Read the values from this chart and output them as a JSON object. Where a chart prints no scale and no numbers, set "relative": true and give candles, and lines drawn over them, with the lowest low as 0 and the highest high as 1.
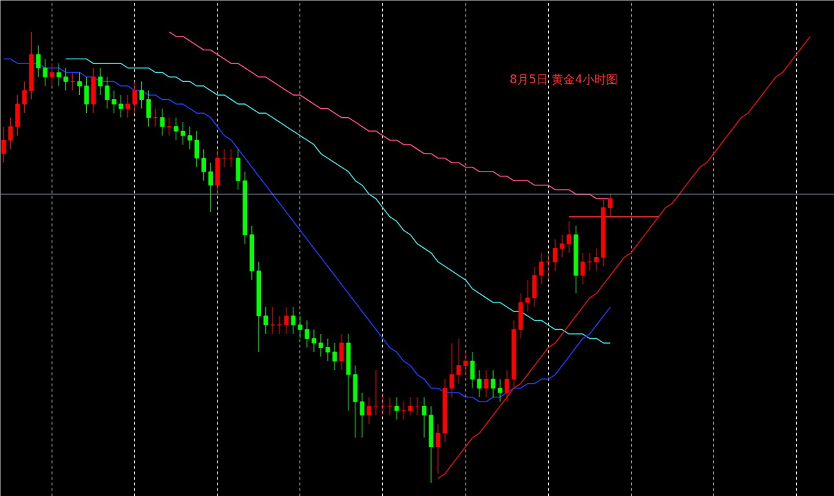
{
  "chart_data": {
    "type": "candlestick",
    "relative": true,
    "title": "8月5日 黄金4小时图",
    "categories": [
      null,
      null,
      null,
      null,
      null,
      null,
      null,
      null,
      null,
      null,
      null,
      null,
      null,
      null,
      null,
      null,
      null,
      null,
      null,
      null,
      null,
      null,
      null,
      null,
      null,
      null,
      null,
      null,
      null,
      null,
      null,
      null,
      null,
      null,
      null,
      null,
      null,
      null,
      null,
      null,
      null,
      null,
      null,
      null,
      null,
      null,
      null,
      null,
      null,
      null,
      null,
      null,
      null,
      null,
      null,
      null,
      null,
      null,
      null,
      null,
      null,
      null,
      null,
      null,
      null,
      null,
      null,
      null,
      null,
      null,
      null,
      null,
      null,
      null,
      null,
      null,
      null,
      null,
      null,
      null,
      null,
      null,
      null,
      null,
      null,
      null,
      null,
      null,
      null,
      null,
      null,
      null,
      null,
      null,
      null,
      null,
      null,
      null,
      null,
      null,
      null,
      null,
      null,
      null,
      null,
      null,
      null,
      null,
      null,
      null,
      null,
      null,
      null,
      null,
      null,
      null,
      null,
      null
    ],
    "ohlc": [
      [
        0.73,
        0.79,
        0.71,
        0.76
      ],
      [
        0.76,
        0.81,
        0.74,
        0.79
      ],
      [
        0.79,
        0.86,
        0.77,
        0.84
      ],
      [
        0.84,
        0.89,
        0.82,
        0.87
      ],
      [
        0.87,
        1.0,
        0.85,
        0.95
      ],
      [
        0.95,
        0.97,
        0.9,
        0.92
      ],
      [
        0.92,
        0.94,
        0.88,
        0.9
      ],
      [
        0.9,
        0.93,
        0.88,
        0.91
      ],
      [
        0.91,
        0.93,
        0.88,
        0.9
      ],
      [
        0.9,
        0.92,
        0.87,
        0.89
      ],
      [
        0.89,
        0.91,
        0.87,
        0.89
      ],
      [
        0.89,
        0.91,
        0.86,
        0.88
      ],
      [
        0.88,
        0.9,
        0.82,
        0.84
      ],
      [
        0.84,
        0.92,
        0.82,
        0.9
      ],
      [
        0.9,
        0.92,
        0.86,
        0.88
      ],
      [
        0.88,
        0.9,
        0.83,
        0.85
      ],
      [
        0.85,
        0.87,
        0.82,
        0.84
      ],
      [
        0.84,
        0.86,
        0.81,
        0.83
      ],
      [
        0.83,
        0.86,
        0.81,
        0.84
      ],
      [
        0.84,
        0.89,
        0.82,
        0.87
      ],
      [
        0.87,
        0.89,
        0.83,
        0.85
      ],
      [
        0.85,
        0.87,
        0.79,
        0.81
      ],
      [
        0.81,
        0.83,
        0.79,
        0.81
      ],
      [
        0.81,
        0.83,
        0.77,
        0.79
      ],
      [
        0.79,
        0.81,
        0.77,
        0.79
      ],
      [
        0.79,
        0.81,
        0.76,
        0.78
      ],
      [
        0.78,
        0.8,
        0.75,
        0.77
      ],
      [
        0.77,
        0.79,
        0.74,
        0.76
      ],
      [
        0.76,
        0.78,
        0.7,
        0.72
      ],
      [
        0.72,
        0.74,
        0.67,
        0.69
      ],
      [
        0.69,
        0.71,
        0.6,
        0.66
      ],
      [
        0.66,
        0.74,
        0.64,
        0.72
      ],
      [
        0.72,
        0.74,
        0.7,
        0.72
      ],
      [
        0.72,
        0.74,
        0.7,
        0.72
      ],
      [
        0.72,
        0.74,
        0.65,
        0.67
      ],
      [
        0.67,
        0.69,
        0.53,
        0.55
      ],
      [
        0.55,
        0.57,
        0.45,
        0.47
      ],
      [
        0.47,
        0.49,
        0.29,
        0.37
      ],
      [
        0.37,
        0.39,
        0.33,
        0.35
      ],
      [
        0.35,
        0.39,
        0.33,
        0.35
      ],
      [
        0.35,
        0.37,
        0.33,
        0.35
      ],
      [
        0.35,
        0.39,
        0.33,
        0.37
      ],
      [
        0.37,
        0.39,
        0.33,
        0.35
      ],
      [
        0.35,
        0.37,
        0.32,
        0.34
      ],
      [
        0.34,
        0.36,
        0.3,
        0.32
      ],
      [
        0.32,
        0.34,
        0.29,
        0.31
      ],
      [
        0.31,
        0.33,
        0.28,
        0.3
      ],
      [
        0.3,
        0.32,
        0.27,
        0.29
      ],
      [
        0.29,
        0.31,
        0.25,
        0.27
      ],
      [
        0.27,
        0.33,
        0.25,
        0.31
      ],
      [
        0.31,
        0.33,
        0.16,
        0.24
      ],
      [
        0.24,
        0.26,
        0.1,
        0.18
      ],
      [
        0.18,
        0.2,
        0.1,
        0.15
      ],
      [
        0.15,
        0.19,
        0.13,
        0.17
      ],
      [
        0.17,
        0.25,
        0.15,
        0.17
      ],
      [
        0.17,
        0.2,
        0.15,
        0.17
      ],
      [
        0.17,
        0.19,
        0.15,
        0.17
      ],
      [
        0.17,
        0.19,
        0.14,
        0.16
      ],
      [
        0.16,
        0.18,
        0.14,
        0.16
      ],
      [
        0.16,
        0.19,
        0.15,
        0.17
      ],
      [
        0.17,
        0.19,
        0.15,
        0.17
      ],
      [
        0.17,
        0.19,
        0.1,
        0.15
      ],
      [
        0.15,
        0.17,
        0.0,
        0.08
      ],
      [
        0.08,
        0.13,
        0.02,
        0.11
      ],
      [
        0.11,
        0.23,
        0.09,
        0.21
      ],
      [
        0.21,
        0.31,
        0.19,
        0.24
      ],
      [
        0.24,
        0.32,
        0.22,
        0.26
      ],
      [
        0.26,
        0.29,
        0.24,
        0.27
      ],
      [
        0.27,
        0.29,
        0.21,
        0.23
      ],
      [
        0.23,
        0.25,
        0.19,
        0.21
      ],
      [
        0.21,
        0.25,
        0.19,
        0.23
      ],
      [
        0.23,
        0.25,
        0.19,
        0.21
      ],
      [
        0.21,
        0.23,
        0.18,
        0.2
      ],
      [
        0.2,
        0.25,
        0.18,
        0.23
      ],
      [
        0.23,
        0.36,
        0.21,
        0.34
      ],
      [
        0.34,
        0.42,
        0.32,
        0.4
      ],
      [
        0.4,
        0.45,
        0.38,
        0.41
      ],
      [
        0.41,
        0.48,
        0.39,
        0.46
      ],
      [
        0.46,
        0.51,
        0.44,
        0.49
      ],
      [
        0.49,
        0.51,
        0.45,
        0.49
      ],
      [
        0.49,
        0.54,
        0.47,
        0.52
      ],
      [
        0.52,
        0.55,
        0.5,
        0.53
      ],
      [
        0.53,
        0.58,
        0.51,
        0.55
      ],
      [
        0.55,
        0.57,
        0.42,
        0.46
      ],
      [
        0.46,
        0.51,
        0.44,
        0.49
      ],
      [
        0.49,
        0.51,
        0.47,
        0.49
      ],
      [
        0.49,
        0.52,
        0.47,
        0.5
      ],
      [
        0.5,
        0.63,
        0.48,
        0.61
      ],
      [
        0.61,
        0.64,
        0.59,
        0.63
      ],
      null,
      null,
      null,
      null,
      null,
      null,
      null,
      null,
      null,
      null,
      null,
      null,
      null,
      null,
      null,
      null,
      null,
      null,
      null,
      null,
      null,
      null,
      null,
      null,
      null,
      null,
      null,
      null,
      null
    ],
    "colors": [
      "#ff0000",
      "#ff0000",
      "#ff0000",
      "#ff0000",
      "#ff0000",
      "#00ff00",
      "#00ff00",
      "#ff0000",
      "#00ff00",
      "#00ff00",
      "#ff0000",
      "#00ff00",
      "#00ff00",
      "#ff0000",
      "#00ff00",
      "#00ff00",
      "#00ff00",
      "#00ff00",
      "#ff0000",
      "#ff0000",
      "#00ff00",
      "#00ff00",
      "#ff0000",
      "#00ff00",
      "#ff0000",
      "#00ff00",
      "#00ff00",
      "#00ff00",
      "#00ff00",
      "#00ff00",
      "#00ff00",
      "#ff0000",
      "#ff0000",
      "#ff0000",
      "#00ff00",
      "#00ff00",
      "#00ff00",
      "#00ff00",
      "#00ff00",
      "#ff0000",
      "#ff0000",
      "#ff0000",
      "#00ff00",
      "#00ff00",
      "#00ff00",
      "#00ff00",
      "#00ff00",
      "#00ff00",
      "#00ff00",
      "#ff0000",
      "#00ff00",
      "#00ff00",
      "#00ff00",
      "#ff0000",
      "#ff0000",
      "#ff0000",
      "#ff0000",
      "#00ff00",
      "#ff0000",
      "#ff0000",
      "#ff0000",
      "#00ff00",
      "#00ff00",
      "#ff0000",
      "#ff0000",
      "#ff0000",
      "#ff0000",
      "#ff0000",
      "#00ff00",
      "#00ff00",
      "#ff0000",
      "#00ff00",
      "#00ff00",
      "#ff0000",
      "#ff0000",
      "#ff0000",
      "#ff0000",
      "#ff0000",
      "#ff0000",
      "#ff0000",
      "#ff0000",
      "#ff0000",
      "#ff0000",
      "#00ff00",
      "#ff0000",
      "#ff0000",
      "#ff0000",
      "#ff0000",
      "#ff0000",
      null,
      null,
      null,
      null,
      null,
      null,
      null,
      null,
      null,
      null,
      null,
      null,
      null,
      null,
      null,
      null,
      null,
      null,
      null,
      null,
      null,
      null,
      null,
      null,
      null,
      null,
      null,
      null,
      null
    ],
    "grid": "x",
    "tick_labels": false,
    "series": [
      {
        "type": "line",
        "color": "#ff4f8a",
        "values": [
          null,
          null,
          null,
          null,
          null,
          null,
          null,
          null,
          null,
          null,
          null,
          null,
          null,
          null,
          null,
          null,
          null,
          null,
          null,
          null,
          null,
          null,
          null,
          null,
          1.0,
          0.99,
          0.99,
          0.98,
          0.97,
          0.96,
          0.96,
          0.95,
          0.94,
          0.93,
          0.93,
          0.92,
          0.91,
          0.9,
          0.9,
          0.89,
          0.88,
          0.87,
          0.86,
          0.86,
          0.85,
          0.84,
          0.83,
          0.83,
          0.82,
          0.81,
          0.81,
          0.8,
          0.79,
          0.78,
          0.78,
          0.77,
          0.76,
          0.76,
          0.75,
          0.75,
          0.74,
          0.73,
          0.73,
          0.72,
          0.72,
          0.71,
          0.71,
          0.7,
          0.7,
          0.69,
          0.69,
          0.69,
          0.68,
          0.68,
          0.67,
          0.67,
          0.67,
          0.66,
          0.66,
          0.66,
          0.65,
          0.65,
          0.65,
          0.64,
          0.64,
          0.64,
          0.63,
          0.63,
          0.63,
          null,
          null,
          null,
          null,
          null,
          null,
          null,
          null,
          null,
          null,
          null,
          null,
          null,
          null,
          null,
          null,
          null,
          null,
          null,
          null,
          null,
          null,
          null,
          null,
          null,
          null,
          null,
          null,
          null
        ]
      },
      {
        "type": "line",
        "color": "#40e0e0",
        "values": [
          null,
          null,
          null,
          null,
          null,
          null,
          null,
          null,
          null,
          0.94,
          0.94,
          0.94,
          0.94,
          0.93,
          0.93,
          0.93,
          0.93,
          0.93,
          0.92,
          0.92,
          0.92,
          0.92,
          0.91,
          0.91,
          0.9,
          0.9,
          0.89,
          0.89,
          0.88,
          0.88,
          0.87,
          0.86,
          0.86,
          0.85,
          0.84,
          0.84,
          0.83,
          0.82,
          0.82,
          0.81,
          0.8,
          0.79,
          0.78,
          0.77,
          0.76,
          0.75,
          0.73,
          0.72,
          0.71,
          0.7,
          0.69,
          0.67,
          0.66,
          0.64,
          0.63,
          0.61,
          0.59,
          0.58,
          0.56,
          0.55,
          0.53,
          0.52,
          0.51,
          0.49,
          0.48,
          0.47,
          0.46,
          0.45,
          0.43,
          0.42,
          0.41,
          0.4,
          0.4,
          0.39,
          0.38,
          0.38,
          0.37,
          0.36,
          0.36,
          0.35,
          0.34,
          0.34,
          0.33,
          0.33,
          0.33,
          0.32,
          0.32,
          0.31,
          0.31,
          null,
          null,
          null,
          null,
          null,
          null,
          null,
          null,
          null,
          null,
          null,
          null,
          null,
          null,
          null,
          null,
          null,
          null,
          null,
          null,
          null,
          null,
          null,
          null,
          null,
          null,
          null,
          null,
          null
        ]
      },
      {
        "type": "line",
        "color": "#1e3cff",
        "values": [
          0.94,
          0.94,
          0.93,
          0.93,
          0.93,
          0.93,
          0.92,
          0.92,
          0.92,
          0.91,
          0.91,
          0.91,
          0.9,
          0.9,
          0.89,
          0.89,
          0.89,
          0.88,
          0.88,
          0.87,
          0.87,
          0.86,
          0.86,
          0.85,
          0.85,
          0.84,
          0.84,
          0.83,
          0.82,
          0.82,
          0.81,
          0.79,
          0.77,
          0.76,
          0.74,
          0.72,
          0.7,
          0.68,
          0.66,
          0.64,
          0.62,
          0.6,
          0.58,
          0.56,
          0.54,
          0.52,
          0.5,
          0.48,
          0.46,
          0.44,
          0.42,
          0.4,
          0.38,
          0.36,
          0.34,
          0.32,
          0.3,
          0.29,
          0.27,
          0.26,
          0.24,
          0.23,
          0.21,
          0.21,
          0.2,
          0.2,
          0.2,
          0.19,
          0.19,
          0.18,
          0.18,
          0.19,
          0.19,
          0.2,
          0.21,
          0.21,
          0.22,
          0.22,
          0.23,
          0.23,
          0.24,
          0.26,
          0.28,
          0.3,
          0.32,
          0.33,
          0.35,
          0.37,
          0.39,
          null,
          null,
          null,
          null,
          null,
          null,
          null,
          null,
          null,
          null,
          null,
          null,
          null,
          null,
          null,
          null,
          null,
          null,
          null,
          null,
          null,
          null,
          null,
          null,
          null,
          null,
          null,
          null,
          null
        ]
      },
      {
        "type": "line",
        "color": "#e01010",
        "values": [
          null,
          null,
          null,
          null,
          null,
          null,
          null,
          null,
          null,
          null,
          null,
          null,
          null,
          null,
          null,
          null,
          null,
          null,
          null,
          null,
          null,
          null,
          null,
          null,
          null,
          null,
          null,
          null,
          null,
          null,
          null,
          null,
          null,
          null,
          null,
          null,
          null,
          null,
          null,
          null,
          null,
          null,
          null,
          null,
          null,
          null,
          null,
          null,
          null,
          null,
          null,
          null,
          null,
          null,
          null,
          null,
          null,
          null,
          null,
          null,
          null,
          null,
          null,
          0.01,
          0.02,
          0.04,
          0.06,
          0.08,
          0.1,
          0.11,
          0.13,
          0.15,
          0.17,
          0.19,
          0.21,
          0.22,
          0.24,
          0.26,
          0.28,
          0.3,
          0.31,
          0.33,
          0.35,
          0.37,
          0.39,
          0.41,
          0.42,
          0.44,
          0.46,
          0.48,
          0.5,
          0.51,
          0.53,
          0.55,
          0.57,
          0.59,
          0.61,
          0.62,
          0.64,
          0.66,
          0.68,
          0.7,
          0.71,
          0.73,
          0.75,
          0.77,
          0.79,
          0.81,
          0.82,
          0.84,
          0.86,
          0.88,
          0.9,
          0.91,
          0.93,
          0.95,
          0.97,
          0.99
        ]
      },
      {
        "type": "line",
        "color": "#ff3030",
        "values": [
          null,
          null,
          null,
          null,
          null,
          null,
          null,
          null,
          null,
          null,
          null,
          null,
          null,
          null,
          null,
          null,
          null,
          null,
          null,
          null,
          null,
          null,
          null,
          null,
          null,
          null,
          null,
          null,
          null,
          null,
          null,
          null,
          null,
          null,
          null,
          null,
          null,
          null,
          null,
          null,
          null,
          null,
          null,
          null,
          null,
          null,
          null,
          null,
          null,
          null,
          null,
          null,
          null,
          null,
          null,
          null,
          null,
          null,
          null,
          null,
          null,
          null,
          null,
          null,
          null,
          null,
          null,
          null,
          null,
          null,
          null,
          null,
          null,
          null,
          null,
          null,
          null,
          null,
          null,
          null,
          null,
          null,
          0.59,
          0.59,
          0.59,
          0.59,
          0.59,
          0.59,
          0.59,
          0.59,
          0.59,
          0.59,
          0.59,
          0.59,
          0.59,
          0.59,
          null,
          null,
          null,
          null,
          null,
          null,
          null,
          null,
          null,
          null,
          null,
          null,
          null,
          null,
          null,
          null,
          null,
          null,
          null,
          null,
          null,
          null
        ]
      }
    ],
    "ref_lines": [
      {
        "axis": "y",
        "value": 0.64,
        "color": "#8a9bb0"
      }
    ]
  }
}
